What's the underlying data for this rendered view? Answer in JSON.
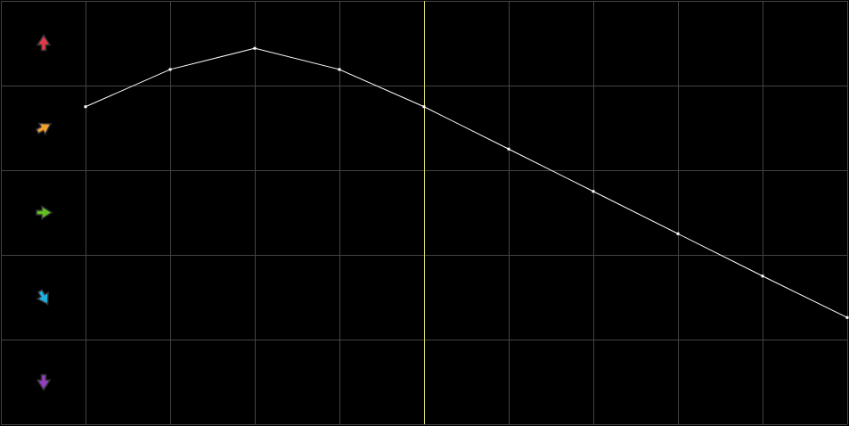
{
  "chart_data": {
    "type": "line",
    "x": [
      1,
      2,
      3,
      4,
      5,
      6,
      7,
      8,
      9,
      10
    ],
    "series": [
      {
        "values": [
          3.75,
          4.19,
          4.44,
          4.19,
          3.75,
          3.25,
          2.75,
          2.25,
          1.75,
          1.26
        ],
        "color": "#ffffff"
      }
    ],
    "xlim": [
      0,
      10
    ],
    "ylim": [
      0,
      5
    ],
    "grid": true,
    "grid_color": "#444444",
    "background": "#000000",
    "highlight_x": 5,
    "highlight_color": "#d8d870",
    "row_icons": [
      {
        "icon": "arrow-up-icon",
        "color": "#e03a4a",
        "angle": 0
      },
      {
        "icon": "arrow-up-right-icon",
        "color": "#f0a030",
        "angle": 60
      },
      {
        "icon": "arrow-right-icon",
        "color": "#60c020",
        "angle": 90
      },
      {
        "icon": "arrow-down-right-icon",
        "color": "#20b0e0",
        "angle": 150
      },
      {
        "icon": "arrow-down-icon",
        "color": "#9040c0",
        "angle": 180
      }
    ]
  }
}
